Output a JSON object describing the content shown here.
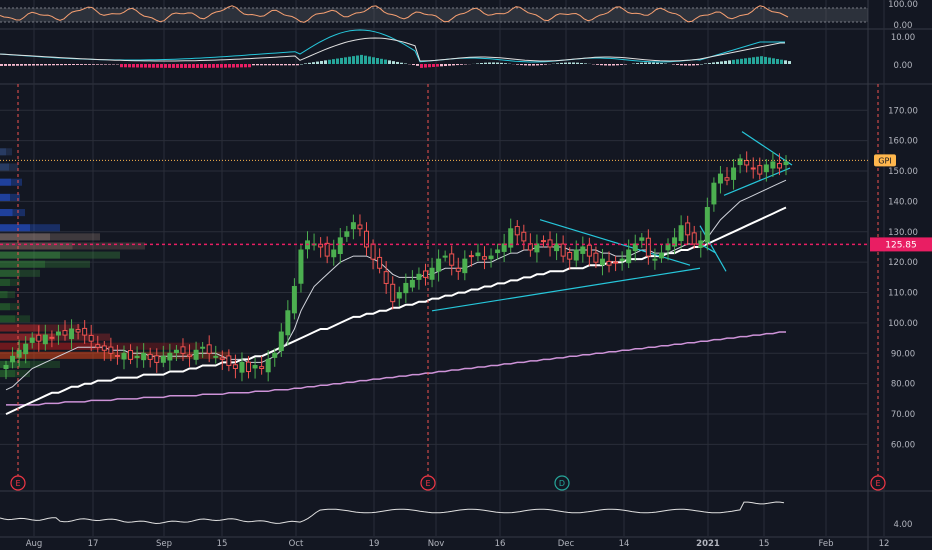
{
  "chart_data": {
    "type": "candlestick",
    "symbol_label": "GPI",
    "last_price": 153.5,
    "crosshair_price_label": "125.85",
    "crosshair_price": 125.85,
    "x_labels": [
      "Aug",
      "17",
      "Sep",
      "15",
      "Oct",
      "19",
      "Nov",
      "16",
      "Dec",
      "14",
      "2021",
      "15",
      "Feb",
      "12"
    ],
    "rsi": {
      "ylim": [
        0,
        100
      ],
      "tick_labels": [
        "100.00",
        "0.00"
      ]
    },
    "macd": {
      "ylim": [
        -5,
        12
      ],
      "tick_labels": [
        "10.00",
        "0.00"
      ]
    },
    "price": {
      "ylim": [
        45,
        178
      ],
      "tick_labels": [
        "170.00",
        "160.00",
        "150.00",
        "140.00",
        "130.00",
        "120.00",
        "110.00",
        "100.00",
        "90.00",
        "80.00",
        "70.00",
        "60.00"
      ]
    },
    "volume": {
      "tick_labels": [
        "4.00"
      ]
    },
    "event_markers": [
      {
        "label": "E",
        "color": "#f23645",
        "date_index": 0
      },
      {
        "label": "E",
        "color": "#f23645",
        "date_index": 59
      },
      {
        "label": "D",
        "color": "#26a69a",
        "date_index": 78
      },
      {
        "label": "E",
        "color": "#f23645",
        "date_index": 127
      }
    ],
    "candles_close": [
      86,
      89,
      91,
      93,
      95,
      94,
      96,
      95,
      97,
      96,
      98,
      97,
      96,
      94,
      92,
      91,
      90,
      89,
      90,
      88,
      89,
      90,
      88,
      87,
      89,
      90,
      91,
      90,
      89,
      91,
      92,
      90,
      89,
      88,
      86,
      85,
      87,
      84,
      86,
      85,
      88,
      90,
      97,
      104,
      112,
      124,
      127,
      126,
      125,
      122,
      124,
      128,
      130,
      133,
      131,
      125,
      121,
      118,
      113,
      107,
      110,
      113,
      114,
      116,
      115,
      118,
      121,
      122,
      119,
      117,
      121,
      122,
      123,
      121,
      122,
      124,
      126,
      131,
      129,
      127,
      124,
      126,
      127,
      125,
      126,
      122,
      121,
      124,
      125,
      122,
      120,
      121,
      119,
      120,
      121,
      124,
      126,
      128,
      122,
      121,
      123,
      126,
      128,
      132,
      129,
      126,
      127,
      138,
      146,
      149,
      147,
      151,
      154,
      152,
      151,
      149,
      152,
      153,
      151,
      153
    ],
    "ma_fast": [
      78,
      79,
      81,
      83,
      85,
      86,
      87,
      88,
      89,
      90,
      91,
      92,
      92,
      92,
      92,
      92,
      91,
      91,
      91,
      90,
      90,
      90,
      89,
      89,
      89,
      89,
      89,
      89,
      89,
      90,
      90,
      90,
      90,
      89,
      88,
      88,
      88,
      87,
      87,
      87,
      88,
      89,
      91,
      94,
      98,
      104,
      108,
      112,
      114,
      116,
      118,
      120,
      121,
      122,
      122,
      122,
      121,
      120,
      118,
      116,
      115,
      115,
      115,
      115,
      116,
      116,
      117,
      118,
      118,
      118,
      118,
      119,
      120,
      120,
      120,
      121,
      122,
      123,
      123,
      124,
      124,
      125,
      125,
      125,
      125,
      125,
      124,
      124,
      124,
      124,
      124,
      123,
      123,
      122,
      122,
      122,
      123,
      124,
      124,
      123,
      123,
      123,
      124,
      125,
      126,
      126,
      126,
      128,
      131,
      134,
      136,
      138,
      140,
      141,
      142,
      143,
      144,
      145,
      146,
      147
    ],
    "ma_mid": [
      70,
      71,
      72,
      73,
      74,
      75,
      76,
      77,
      77,
      78,
      79,
      79,
      80,
      80,
      81,
      81,
      81,
      82,
      82,
      82,
      82,
      83,
      83,
      83,
      83,
      84,
      84,
      84,
      85,
      85,
      86,
      86,
      86,
      87,
      87,
      87,
      88,
      88,
      89,
      89,
      90,
      91,
      92,
      93,
      94,
      95,
      96,
      97,
      98,
      98,
      99,
      100,
      101,
      102,
      102,
      103,
      103,
      104,
      104,
      105,
      105,
      106,
      106,
      107,
      107,
      108,
      108,
      109,
      109,
      110,
      110,
      111,
      111,
      112,
      112,
      113,
      113,
      114,
      114,
      115,
      115,
      116,
      116,
      117,
      117,
      117,
      118,
      118,
      118,
      119,
      119,
      119,
      120,
      120,
      120,
      121,
      121,
      121,
      122,
      122,
      122,
      123,
      123,
      124,
      124,
      125,
      125,
      126,
      127,
      128,
      129,
      130,
      131,
      132,
      133,
      134,
      135,
      136,
      137,
      138
    ],
    "ma_slow": [
      73,
      73,
      73,
      73,
      73,
      73,
      73.5,
      73.5,
      73.5,
      74,
      74,
      74,
      74,
      74.5,
      74.5,
      74.5,
      74.5,
      75,
      75,
      75,
      75,
      75.5,
      75.5,
      75.5,
      75.5,
      76,
      76,
      76,
      76,
      76,
      76.5,
      76.5,
      76.5,
      76.5,
      77,
      77,
      77,
      77,
      77.5,
      77.5,
      77.5,
      78,
      78,
      78,
      78.5,
      78.5,
      79,
      79,
      79.5,
      79.5,
      80,
      80,
      80.5,
      80.5,
      81,
      81,
      81.5,
      81.5,
      82,
      82,
      82.5,
      82.5,
      83,
      83,
      83.5,
      83.5,
      84,
      84,
      84.5,
      84.5,
      85,
      85,
      85.5,
      85.5,
      86,
      86,
      86.5,
      86.5,
      87,
      87,
      87.5,
      87.5,
      88,
      88,
      88.5,
      88.5,
      89,
      89,
      89.5,
      89.5,
      90,
      90,
      90.5,
      90.5,
      91,
      91,
      91.5,
      91.5,
      92,
      92,
      92.5,
      92.5,
      93,
      93,
      93.5,
      93.5,
      94,
      94,
      94.5,
      94.5,
      95,
      95,
      95.5,
      95.5,
      96,
      96,
      96.5,
      96.5,
      97,
      97
    ]
  }
}
